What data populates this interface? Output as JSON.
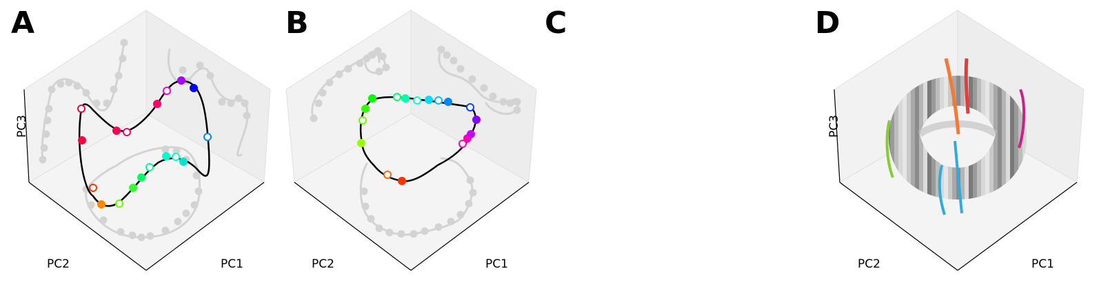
{
  "panels": {
    "a": {
      "letter": "A"
    },
    "b": {
      "letter": "B"
    },
    "c": {
      "letter": "C"
    },
    "d": {
      "letter": "D"
    }
  },
  "axes": {
    "x": "PC1",
    "y": "PC2",
    "z": "PC3"
  },
  "colors": {
    "pane": "#f2f2f2",
    "pane_edge": "#e0e0e0",
    "projection": "#d3d3d3",
    "trajectory": "#000000"
  },
  "chart_data": [
    {
      "panel": "A",
      "type": "scatter",
      "projection": "3d",
      "xlabel": "PC1",
      "ylabel": "PC2",
      "zlabel": "PC3",
      "series": [
        {
          "style": "black-curve-with-hue-markers",
          "marker_colors": [
            "#ff0033",
            "#ff0040",
            "#ff0050",
            "#ff0060",
            "#ff0066",
            "#ff00cc",
            "#aa00ff",
            "#0000ff",
            "#0088ff",
            "#00e6cc",
            "#00ffd0",
            "#00ffcc",
            "#00ff99",
            "#00ff66",
            "#33ff33",
            "#66ff00",
            "#ff8800",
            "#ff3300"
          ],
          "marker_filled": [
            false,
            true,
            true,
            false,
            true,
            false,
            true,
            true,
            false,
            true,
            false,
            true,
            false,
            true,
            true,
            false,
            true,
            false
          ]
        }
      ],
      "grid": false
    },
    {
      "panel": "B",
      "type": "scatter",
      "projection": "3d",
      "xlabel": "PC1",
      "ylabel": "PC2",
      "zlabel": "",
      "series": [
        {
          "style": "black-curve-with-hue-markers",
          "marker_colors": [
            "#00ff00",
            "#33ff00",
            "#66ff00",
            "#99ff00",
            "#ff6600",
            "#ff3300",
            "#ff00cc",
            "#ff00aa",
            "#cc00ff",
            "#8800ff",
            "#0044ff",
            "#0088ff",
            "#00bbff",
            "#00ddff",
            "#00ffcc",
            "#00ffaa",
            "#00ff66"
          ],
          "marker_filled": [
            true,
            true,
            false,
            true,
            false,
            true,
            false,
            true,
            true,
            true,
            false,
            true,
            false,
            true,
            false,
            true,
            false
          ]
        }
      ],
      "grid": false
    },
    {
      "panel": "D",
      "type": "surface",
      "projection": "3d",
      "xlabel": "PC1",
      "ylabel": "PC2",
      "zlabel": "PC3",
      "series": [
        {
          "style": "torus-gray-bands",
          "highlight_colors": [
            "#f47a33",
            "#e83a3a",
            "#cc2288",
            "#88cc33",
            "#33aadd"
          ]
        }
      ],
      "grid": false
    }
  ]
}
